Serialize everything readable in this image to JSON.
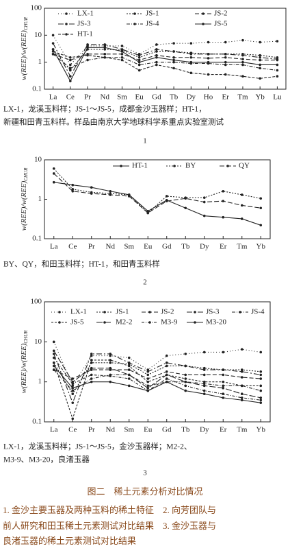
{
  "chart_data": [
    {
      "type": "line",
      "log_scale": true,
      "ylabel": "w(REE)/w(REE)",
      "ylabel_sub": "CHUR",
      "categories": [
        "La",
        "Ce",
        "Pr",
        "Nd",
        "Sm",
        "Eu",
        "Gd",
        "Tb",
        "Dy",
        "Ho",
        "Er",
        "Tm",
        "Yb",
        "Lu"
      ],
      "ylim": [
        0.1,
        100
      ],
      "yticks": [
        0.1,
        1,
        10,
        100
      ],
      "series": [
        {
          "name": "LX-1",
          "color": "#222",
          "dash": "1,3",
          "values": [
            10,
            0.8,
            4,
            4,
            4,
            2,
            4.5,
            5,
            5,
            5.5,
            5.5,
            6.5,
            5.5,
            6
          ]
        },
        {
          "name": "JS-1",
          "color": "#222",
          "dash": "2,2",
          "values": [
            3,
            0.5,
            3,
            3,
            2.8,
            1.5,
            2.5,
            2.5,
            2.2,
            2,
            2,
            2,
            1.8,
            1.5
          ]
        },
        {
          "name": "JS-2",
          "color": "#222",
          "dash": "6,3",
          "values": [
            2,
            1.2,
            2,
            2,
            2,
            1.2,
            1.8,
            1.5,
            1.5,
            1.4,
            1.5,
            1.3,
            1.2,
            1.2
          ]
        },
        {
          "name": "JS-3",
          "color": "#222",
          "dash": "8,3,2,3",
          "values": [
            5,
            0.3,
            4.5,
            4.5,
            3,
            1.8,
            3,
            2.5,
            2,
            2,
            2,
            1.8,
            1.5,
            1.3
          ]
        },
        {
          "name": "JS-4",
          "color": "#222",
          "dash": "5,2,1,2",
          "values": [
            2,
            0.6,
            1.2,
            1.5,
            1.5,
            0.8,
            1,
            1,
            0.9,
            0.9,
            0.8,
            0.8,
            0.6,
            0.5
          ]
        },
        {
          "name": "JS-5",
          "color": "#222",
          "dash": "none",
          "values": [
            3,
            0.2,
            3.5,
            3.5,
            2.5,
            1,
            1.5,
            1.2,
            1,
            1,
            1,
            1,
            0.8,
            0.8
          ]
        },
        {
          "name": "HT-1",
          "color": "#222",
          "dash": "4,2",
          "values": [
            2.5,
            1.5,
            1.8,
            1.5,
            1.2,
            0.5,
            0.8,
            0.6,
            0.4,
            0.35,
            0.35,
            0.3,
            0.25,
            0.3
          ]
        }
      ],
      "notes": [
        "LX-1，龙溪玉料样；JS-1～JS-5，成都金沙玉器样；HT-1，",
        "新疆和田青玉料样。样品由南京大学地球科学系重点实验室测试"
      ],
      "label": "1"
    },
    {
      "type": "line",
      "log_scale": true,
      "ylabel": "w(REE)/w(REE)",
      "ylabel_sub": "CHUR",
      "categories": [
        "La",
        "Ce",
        "Pr",
        "Nd",
        "Sm",
        "Eu",
        "Gd",
        "Tb",
        "Dy",
        "Er",
        "Tm",
        "Yb"
      ],
      "ylim": [
        0.1,
        10
      ],
      "yticks": [
        0.1,
        1,
        10
      ],
      "series": [
        {
          "name": "HT-1",
          "color": "#222",
          "dash": "none",
          "values": [
            2.7,
            2.3,
            2,
            1.6,
            1.3,
            0.5,
            0.95,
            0.6,
            0.38,
            0.35,
            0.32,
            0.22
          ]
        },
        {
          "name": "BY",
          "color": "#222",
          "dash": "2,2",
          "values": [
            6,
            1.8,
            1.5,
            1.4,
            1.3,
            0.45,
            1.2,
            1.1,
            1.1,
            1.6,
            1.3,
            1.05
          ]
        },
        {
          "name": "QY",
          "color": "#222",
          "dash": "7,3",
          "values": [
            4.5,
            1.6,
            1.4,
            1.3,
            1.2,
            0.45,
            0.9,
            1.05,
            0.85,
            0.9,
            0.7,
            0.6
          ]
        }
      ],
      "notes": [
        "BY、QY，和田玉料样；HT-1，和田青玉料样"
      ],
      "label": "2"
    },
    {
      "type": "line",
      "log_scale": true,
      "ylabel": "w(REE)/w(REE)",
      "ylabel_sub": "CHUR",
      "categories": [
        "La",
        "Ce",
        "Pr",
        "Nd",
        "Sm",
        "Eu",
        "Gd",
        "Tb",
        "Dy",
        "Er",
        "Tm",
        "Yb"
      ],
      "ylim": [
        0.1,
        100
      ],
      "yticks": [
        0.1,
        1,
        10,
        100
      ],
      "series": [
        {
          "name": "LX-1",
          "color": "#222",
          "dash": "1,3",
          "values": [
            10,
            0.8,
            4.5,
            4.5,
            4,
            2,
            4.5,
            5,
            5.5,
            5.5,
            6.5,
            5.5
          ]
        },
        {
          "name": "JS-1",
          "color": "#222",
          "dash": "2,2",
          "values": [
            3,
            0.5,
            3,
            3,
            2.8,
            1.5,
            2.5,
            2.5,
            2.2,
            2,
            2,
            1.8
          ]
        },
        {
          "name": "JS-2",
          "color": "#222",
          "dash": "6,3",
          "values": [
            2,
            1.2,
            2,
            2,
            2,
            1.2,
            1.8,
            1.5,
            1.5,
            1.5,
            1.3,
            1.2
          ]
        },
        {
          "name": "JS-3",
          "color": "#222",
          "dash": "8,3,2,3",
          "values": [
            5,
            0.3,
            5,
            5,
            3,
            1.8,
            3,
            2.5,
            2,
            2,
            1.8,
            1.5
          ]
        },
        {
          "name": "JS-4",
          "color": "#222",
          "dash": "5,2,1,2",
          "values": [
            2,
            0.6,
            1.2,
            1.5,
            1.5,
            0.8,
            1,
            1,
            0.9,
            0.8,
            0.8,
            0.6
          ]
        },
        {
          "name": "JS-5",
          "color": "#222",
          "dash": "3,2",
          "values": [
            3,
            0.12,
            3.5,
            3.5,
            2.5,
            1,
            1.5,
            1.2,
            1,
            1,
            0.8,
            0.8
          ]
        },
        {
          "name": "M2-2",
          "color": "#222",
          "dash": "9,3",
          "values": [
            6,
            1,
            2.2,
            2.2,
            1.5,
            0.7,
            1.5,
            1,
            0.8,
            0.7,
            0.5,
            0.4
          ]
        },
        {
          "name": "M3-9",
          "color": "#222",
          "dash": "4,2,1,2",
          "values": [
            4,
            0.9,
            1.5,
            1.4,
            1.2,
            0.6,
            1.2,
            0.8,
            0.6,
            0.5,
            0.4,
            0.35
          ]
        },
        {
          "name": "M3-20",
          "color": "#222",
          "dash": "none",
          "values": [
            2.5,
            0.7,
            1,
            1,
            0.8,
            0.6,
            1,
            0.6,
            0.5,
            0.4,
            0.35,
            0.3
          ]
        }
      ],
      "notes": [
        "LX-1，龙溪玉料样；JS-1～JS-5，金沙玉器样；M2-2、",
        "M3-9、M3-20，良渚玉器"
      ],
      "label": "3"
    }
  ],
  "figure_title": "图二　稀土元素分析对比情况",
  "description": [
    "1. 金沙主要玉器及两种玉料的稀土特征　2. 向芳团队与",
    "前人研究和田玉稀土元素测试对比结果　3. 金沙玉器与",
    "良渚玉器的稀土元素测试对比结果"
  ]
}
